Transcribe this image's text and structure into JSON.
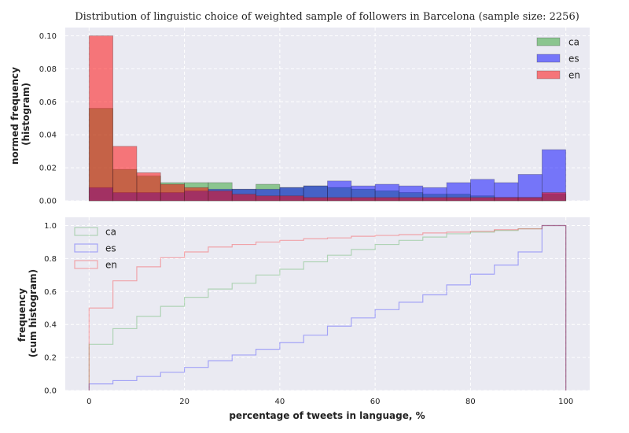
{
  "chart_data": [
    {
      "type": "bar",
      "title": "Distribution of linguistic choice of weighted sample of followers in Barcelona (sample size: 2256)",
      "xlabel": "",
      "ylabel": [
        "normed frequency",
        "(histogram)"
      ],
      "xlim": [
        -5,
        105
      ],
      "ylim": [
        0,
        0.105
      ],
      "yticks": [
        "0.00",
        "0.02",
        "0.04",
        "0.06",
        "0.08",
        "0.10"
      ],
      "yticks_values": [
        0,
        0.02,
        0.04,
        0.06,
        0.08,
        0.1
      ],
      "bin_edges": [
        0,
        5,
        10,
        15,
        20,
        25,
        30,
        35,
        40,
        45,
        50,
        55,
        60,
        65,
        70,
        75,
        80,
        85,
        90,
        95,
        100
      ],
      "grid": true,
      "legend_position": "top-right",
      "series": [
        {
          "name": "ca",
          "color": "#2ca02c",
          "values": [
            0.056,
            0.019,
            0.015,
            0.011,
            0.011,
            0.011,
            0.007,
            0.01,
            0.008,
            0.009,
            0.008,
            0.007,
            0.006,
            0.005,
            0.004,
            0.004,
            0.003,
            0.002,
            0.002,
            0.004
          ]
        },
        {
          "name": "es",
          "color": "#0000ff",
          "values": [
            0.008,
            0.005,
            0.005,
            0.005,
            0.006,
            0.007,
            0.007,
            0.007,
            0.008,
            0.009,
            0.012,
            0.009,
            0.01,
            0.009,
            0.008,
            0.011,
            0.013,
            0.011,
            0.016,
            0.031
          ]
        },
        {
          "name": "en",
          "color": "#ff0000",
          "values": [
            0.1,
            0.033,
            0.017,
            0.01,
            0.008,
            0.006,
            0.004,
            0.003,
            0.003,
            0.002,
            0.002,
            0.002,
            0.002,
            0.002,
            0.002,
            0.002,
            0.002,
            0.002,
            0.002,
            0.005
          ]
        }
      ]
    },
    {
      "type": "line",
      "subtype": "cumulative step histogram",
      "xlabel": "percentage of tweets in language, %",
      "ylabel": [
        "frequency",
        "(cum histogram)"
      ],
      "xlim": [
        -5,
        105
      ],
      "ylim": [
        0,
        1.05
      ],
      "xticks": [
        "0",
        "20",
        "40",
        "60",
        "80",
        "100"
      ],
      "xticks_values": [
        0,
        20,
        40,
        60,
        80,
        100
      ],
      "yticks": [
        "0.0",
        "0.2",
        "0.4",
        "0.6",
        "0.8",
        "1.0"
      ],
      "yticks_values": [
        0,
        0.2,
        0.4,
        0.6,
        0.8,
        1.0
      ],
      "bin_edges": [
        0,
        5,
        10,
        15,
        20,
        25,
        30,
        35,
        40,
        45,
        50,
        55,
        60,
        65,
        70,
        75,
        80,
        85,
        90,
        95,
        100
      ],
      "grid": true,
      "legend_position": "top-left",
      "series": [
        {
          "name": "ca",
          "color": "#2ca02c",
          "values": [
            0.28,
            0.375,
            0.45,
            0.51,
            0.565,
            0.615,
            0.65,
            0.7,
            0.735,
            0.78,
            0.82,
            0.855,
            0.885,
            0.91,
            0.93,
            0.95,
            0.96,
            0.97,
            0.98,
            1.0
          ]
        },
        {
          "name": "es",
          "color": "#0000ff",
          "values": [
            0.04,
            0.06,
            0.085,
            0.11,
            0.14,
            0.18,
            0.215,
            0.25,
            0.29,
            0.335,
            0.39,
            0.44,
            0.49,
            0.535,
            0.58,
            0.64,
            0.705,
            0.76,
            0.84,
            1.0
          ]
        },
        {
          "name": "en",
          "color": "#ff0000",
          "values": [
            0.5,
            0.665,
            0.75,
            0.805,
            0.84,
            0.87,
            0.885,
            0.9,
            0.91,
            0.92,
            0.925,
            0.935,
            0.94,
            0.945,
            0.955,
            0.96,
            0.965,
            0.975,
            0.98,
            1.0
          ]
        }
      ]
    }
  ]
}
